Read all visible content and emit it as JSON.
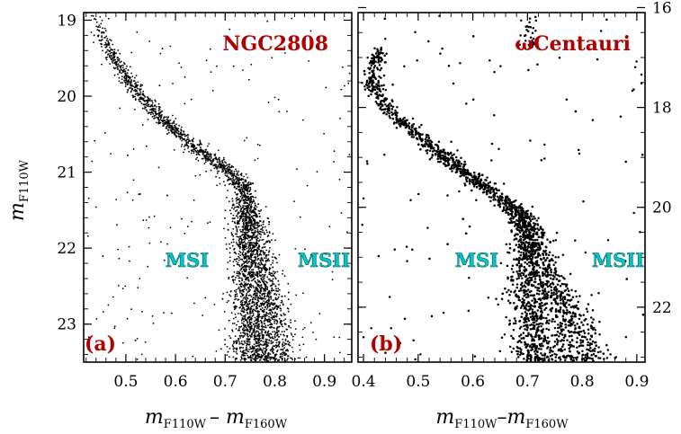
{
  "colors": {
    "points": "#000000",
    "panel_titles": "#b00000",
    "sequence_labels": "#00c8c8",
    "frame": "#000000"
  },
  "chart_data": [
    {
      "type": "scatter",
      "panel_letter": "(a)",
      "cluster": "NGC2808",
      "xlabel": "m",
      "xlabel_sub1": "F110W",
      "xlabel_mid": "– m",
      "xlabel_sub2": "F160W",
      "ylabel": "m",
      "ylabel_sub": "F110W",
      "xlim": [
        0.415,
        0.955
      ],
      "ylim": [
        23.5,
        18.9
      ],
      "y_inverted": true,
      "x_ticks": [
        "0.5",
        "0.6",
        "0.7",
        "0.8",
        "0.9"
      ],
      "y_ticks": [
        "19",
        "20",
        "21",
        "22",
        "23"
      ],
      "annotations": [
        {
          "text": "MSI",
          "x": 0.655,
          "y": 22.12
        },
        {
          "text": "MSII",
          "x": 0.89,
          "y": 22.12
        }
      ],
      "ridge_upper": [
        [
          0.435,
          18.9
        ],
        [
          0.46,
          19.3
        ],
        [
          0.49,
          19.65
        ],
        [
          0.525,
          19.95
        ],
        [
          0.565,
          20.25
        ],
        [
          0.61,
          20.52
        ],
        [
          0.655,
          20.75
        ],
        [
          0.7,
          20.95
        ],
        [
          0.735,
          21.2
        ],
        [
          0.745,
          21.55
        ]
      ],
      "ridge_MSI": [
        [
          0.745,
          21.55
        ],
        [
          0.745,
          22.0
        ],
        [
          0.745,
          22.5
        ],
        [
          0.75,
          23.0
        ],
        [
          0.752,
          23.5
        ]
      ],
      "ridge_MSII": [
        [
          0.745,
          21.55
        ],
        [
          0.76,
          22.0
        ],
        [
          0.78,
          22.5
        ],
        [
          0.795,
          23.0
        ],
        [
          0.805,
          23.5
        ]
      ],
      "n_points_shown": 3800
    },
    {
      "type": "scatter",
      "panel_letter": "(b)",
      "cluster": "ωCentauri",
      "xlabel": "m",
      "xlabel_sub1": "F110W",
      "xlabel_mid": "–m",
      "xlabel_sub2": "F160W",
      "xlim": [
        0.39,
        0.915
      ],
      "ylim": [
        23.1,
        16.1
      ],
      "y_inverted": true,
      "y_axis_side": "right",
      "x_ticks": [
        "0.4",
        "0.5",
        "0.6",
        "0.7",
        "0.8",
        "0.9"
      ],
      "y_ticks": [
        "16",
        "18",
        "20",
        "22"
      ],
      "annotations": [
        {
          "text": "MSI",
          "x": 0.585,
          "y": 21.2
        },
        {
          "text": "MSII",
          "x": 0.845,
          "y": 21.2
        }
      ],
      "ridge_upper": [
        [
          0.43,
          16.8
        ],
        [
          0.415,
          17.3
        ],
        [
          0.42,
          17.7
        ],
        [
          0.46,
          18.2
        ],
        [
          0.51,
          18.65
        ],
        [
          0.56,
          19.1
        ],
        [
          0.61,
          19.5
        ],
        [
          0.655,
          19.85
        ],
        [
          0.69,
          20.2
        ],
        [
          0.705,
          20.6
        ]
      ],
      "ridge_MSI": [
        [
          0.705,
          20.6
        ],
        [
          0.7,
          21.2
        ],
        [
          0.705,
          21.8
        ],
        [
          0.71,
          22.4
        ],
        [
          0.72,
          23.1
        ]
      ],
      "ridge_MSII": [
        [
          0.705,
          20.6
        ],
        [
          0.73,
          21.2
        ],
        [
          0.76,
          21.8
        ],
        [
          0.785,
          22.4
        ],
        [
          0.805,
          23.1
        ]
      ],
      "n_points_shown": 2600
    }
  ]
}
